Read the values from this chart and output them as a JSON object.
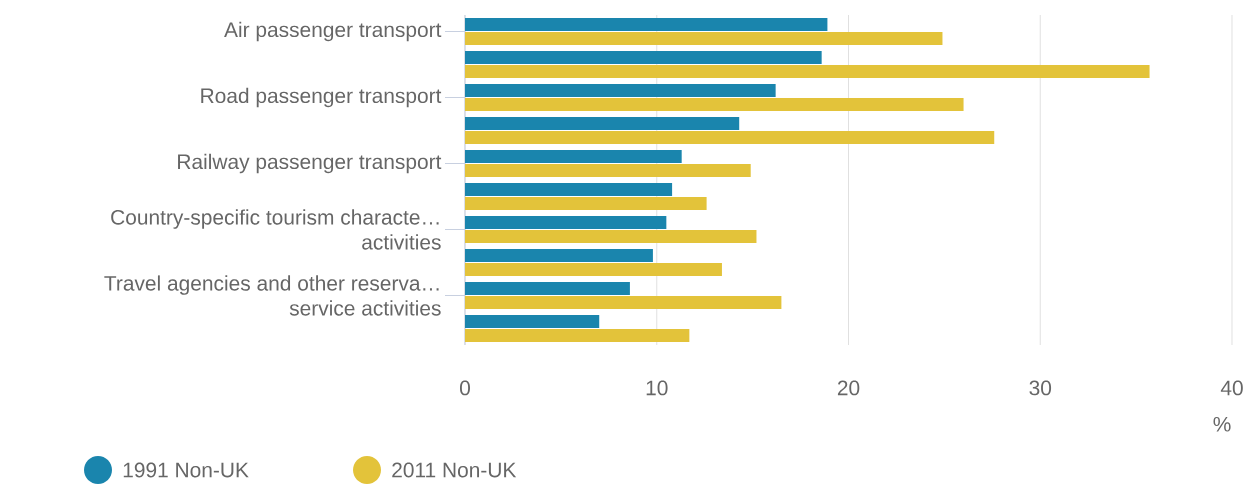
{
  "chart_data": {
    "type": "bar",
    "orientation": "horizontal",
    "categories": [
      "Air passenger transport",
      null,
      "Road passenger transport",
      null,
      "Railway passenger transport",
      null,
      "Country-specific tourism characte… activities",
      null,
      "Travel agencies and other reserva… service activities",
      null
    ],
    "series": [
      {
        "name": "1991 Non-UK",
        "color": "#1a85ad",
        "values": [
          18.9,
          18.6,
          16.2,
          14.3,
          11.3,
          10.8,
          10.5,
          9.8,
          8.6,
          7.0
        ]
      },
      {
        "name": "2011 Non-UK",
        "color": "#e3c33a",
        "values": [
          24.9,
          35.7,
          26.0,
          27.6,
          14.9,
          12.6,
          15.2,
          13.4,
          16.5,
          11.7
        ]
      }
    ],
    "xlim": [
      0,
      40
    ],
    "xticks": [
      0,
      10,
      20,
      30,
      40
    ],
    "xlabel": "%",
    "grid": "x",
    "legend": "bottom left"
  }
}
